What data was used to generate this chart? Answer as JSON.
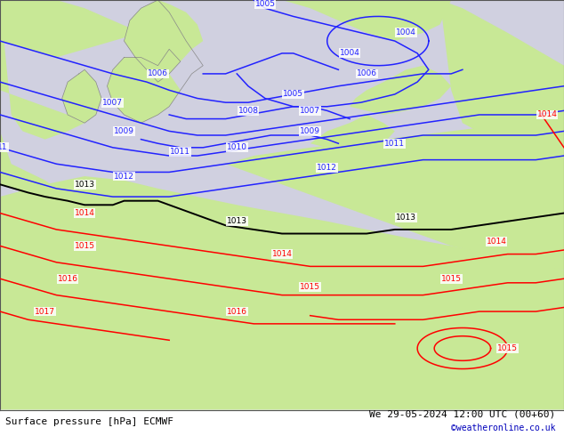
{
  "title_left": "Surface pressure [hPa] ECMWF",
  "title_right": "We 29-05-2024 12:00 UTC (00+60)",
  "credit": "©weatheronline.co.uk",
  "credit_color": "#0000bb",
  "background_color": "#ffffff",
  "fig_width": 6.34,
  "fig_height": 4.9,
  "dpi": 100,
  "land_color": "#c8e896",
  "sea_color": "#d0d0e0",
  "blue_color": "#2222ff",
  "black_color": "#000000",
  "red_color": "#ff0000",
  "gray_coast_color": "#888888",
  "label_fontsize": 6.5,
  "title_fontsize": 8,
  "credit_fontsize": 7,
  "border_color": "#555555"
}
